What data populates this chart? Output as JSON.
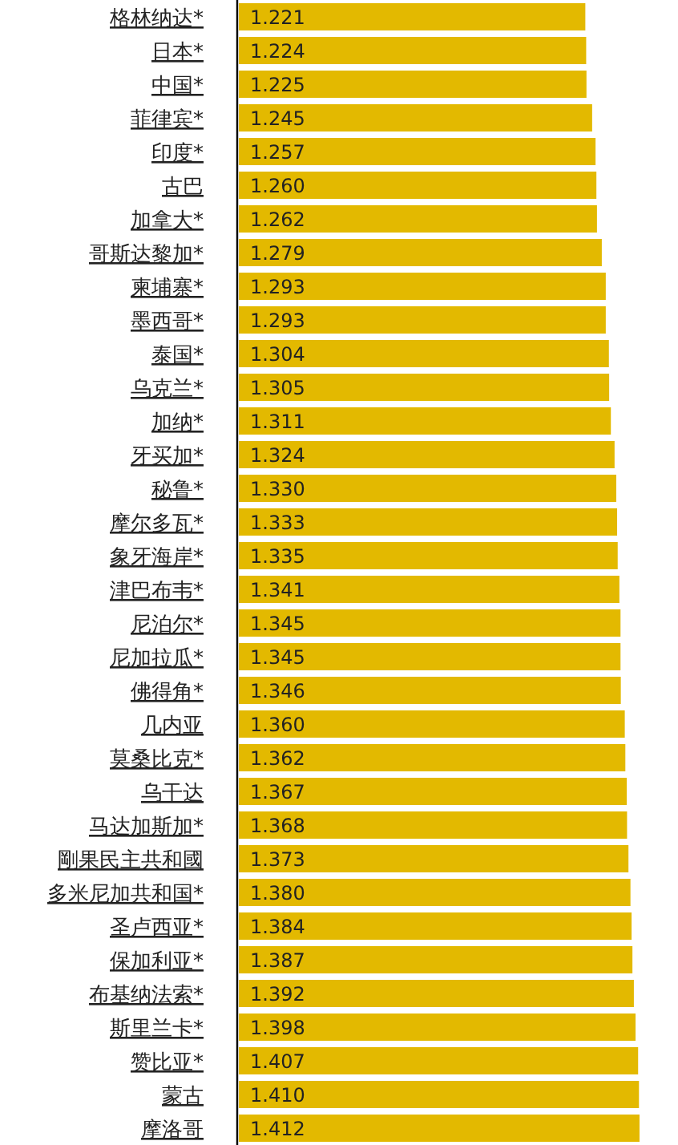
{
  "chart_data": {
    "type": "bar",
    "orientation": "horizontal",
    "value_labels": [
      "1.221",
      "1.224",
      "1.225",
      "1.245",
      "1.257",
      "1.260",
      "1.262",
      "1.279",
      "1.293",
      "1.293",
      "1.304",
      "1.305",
      "1.311",
      "1.324",
      "1.330",
      "1.333",
      "1.335",
      "1.341",
      "1.345",
      "1.345",
      "1.346",
      "1.360",
      "1.362",
      "1.367",
      "1.368",
      "1.373",
      "1.380",
      "1.384",
      "1.387",
      "1.392",
      "1.398",
      "1.407",
      "1.410",
      "1.412"
    ],
    "categories": [
      "格林纳达*",
      "日本*",
      "中国*",
      "菲律宾*",
      "印度*",
      "古巴",
      "加拿大*",
      "哥斯达黎加*",
      "柬埔寨*",
      "墨西哥*",
      "泰国*",
      "乌克兰*",
      "加纳*",
      "牙买加*",
      "秘鲁*",
      "摩尔多瓦*",
      "象牙海岸*",
      "津巴布韦*",
      "尼泊尔*",
      "尼加拉瓜*",
      "佛得角*",
      "几内亚",
      "莫桑比克*",
      "乌干达",
      "马达加斯加*",
      "剛果民主共和國",
      "多米尼加共和国*",
      "圣卢西亚*",
      "保加利亚*",
      "布基纳法索*",
      "斯里兰卡*",
      "赞比亚*",
      "蒙古",
      "摩洛哥"
    ],
    "values": [
      1.221,
      1.224,
      1.225,
      1.245,
      1.257,
      1.26,
      1.262,
      1.279,
      1.293,
      1.293,
      1.304,
      1.305,
      1.311,
      1.324,
      1.33,
      1.333,
      1.335,
      1.341,
      1.345,
      1.345,
      1.346,
      1.36,
      1.362,
      1.367,
      1.368,
      1.373,
      1.38,
      1.384,
      1.387,
      1.392,
      1.398,
      1.407,
      1.41,
      1.412
    ],
    "color": "#e3b900"
  }
}
